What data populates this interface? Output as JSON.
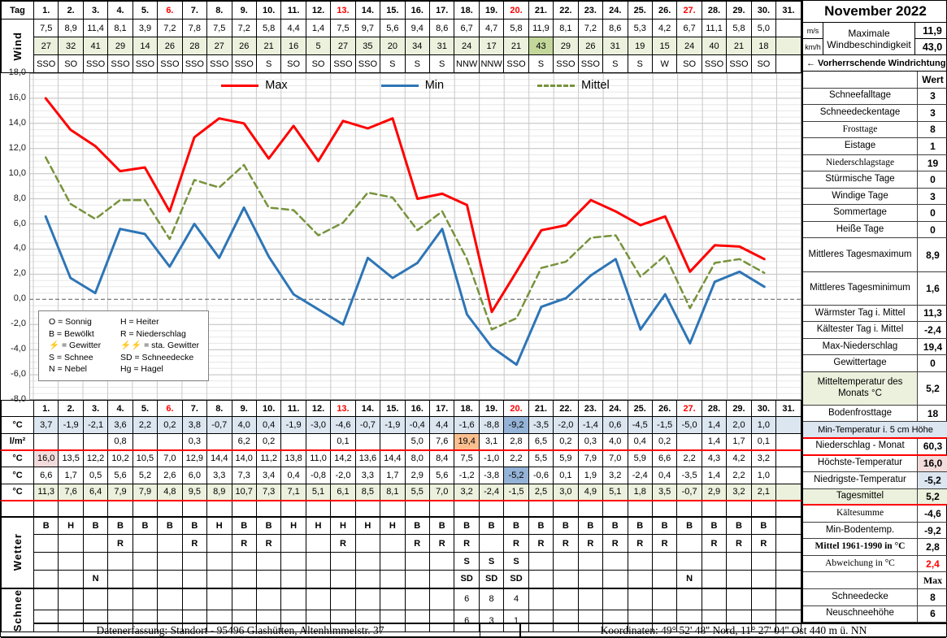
{
  "title": "November 2022",
  "tag_label": "Tag",
  "days": [
    "1.",
    "2.",
    "3.",
    "4.",
    "5.",
    "6.",
    "7.",
    "8.",
    "9.",
    "10.",
    "11.",
    "12.",
    "13.",
    "14.",
    "15.",
    "16.",
    "17.",
    "18.",
    "19.",
    "20.",
    "21.",
    "22.",
    "23.",
    "24.",
    "25.",
    "26.",
    "27.",
    "28.",
    "29.",
    "30.",
    "31."
  ],
  "sunday_days": [
    6,
    13,
    20,
    27
  ],
  "colors": {
    "green": "#ebf1dd",
    "green_dark": "#c4d79b",
    "blue": "#dce6f1",
    "blue_dark": "#95b3d7",
    "pink": "#f2dcdb",
    "orange": "#fabf8f",
    "red": "#ff0000"
  },
  "wind": {
    "row_label": "Wind",
    "unit_ms": "m/s",
    "unit_kmh": "km/h",
    "ms": [
      "7,5",
      "8,9",
      "11,4",
      "8,1",
      "3,9",
      "7,2",
      "7,8",
      "7,5",
      "7,2",
      "5,8",
      "4,4",
      "1,4",
      "7,5",
      "9,7",
      "5,6",
      "9,4",
      "8,6",
      "6,7",
      "4,7",
      "5,8",
      "11,9",
      "8,1",
      "7,2",
      "8,6",
      "5,3",
      "4,2",
      "6,7",
      "11,1",
      "5,8",
      "5,0",
      ""
    ],
    "kmh": [
      "27",
      "32",
      "41",
      "29",
      "14",
      "26",
      "28",
      "27",
      "26",
      "21",
      "16",
      "5",
      "27",
      "35",
      "20",
      "34",
      "31",
      "24",
      "17",
      "21",
      "43",
      "29",
      "26",
      "31",
      "19",
      "15",
      "24",
      "40",
      "21",
      "18",
      ""
    ],
    "dir": [
      "SSO",
      "SO",
      "SSO",
      "SSO",
      "SSO",
      "SSO",
      "SSO",
      "SSO",
      "SSO",
      "S",
      "SO",
      "SO",
      "SSO",
      "SSO",
      "S",
      "S",
      "S",
      "NNW",
      "NNW",
      "SSO",
      "S",
      "SSO",
      "SSO",
      "S",
      "S",
      "W",
      "SO",
      "SSO",
      "SSO",
      "SO",
      ""
    ],
    "kmh_highlight_day": 21,
    "max_label": "Maximale Windbeschindigkeit",
    "max_ms": "11,9",
    "max_kmh": "43,0",
    "prevailing_label": "← Vorherrschende Windrichtung"
  },
  "chart_data": {
    "type": "line",
    "title": "",
    "xlabel": "",
    "ylabel": "",
    "categories_from": "days",
    "ylim": [
      -8,
      18
    ],
    "ytick_step": 2,
    "yminor_step": 0.5,
    "ytick_labels": [
      "18,0",
      "16,0",
      "14,0",
      "12,0",
      "10,0",
      "8,0",
      "6,0",
      "4,0",
      "2,0",
      "0,0",
      "-2,0",
      "-4,0",
      "-6,0",
      "-8,0"
    ],
    "grid": true,
    "zero_line": "dashed",
    "legend_position": "top-center",
    "series": [
      {
        "name": "Max",
        "color": "#ff0000",
        "width": 3,
        "dash": "",
        "values": [
          16,
          13.5,
          12.2,
          10.2,
          10.5,
          7,
          12.9,
          14.4,
          14,
          11.2,
          13.8,
          11,
          14.2,
          13.6,
          14.4,
          8,
          8.4,
          7.5,
          -1,
          2.2,
          5.5,
          5.9,
          7.9,
          7,
          5.9,
          6.6,
          2.2,
          4.3,
          4.2,
          3.2
        ]
      },
      {
        "name": "Min",
        "color": "#2e75b6",
        "width": 3,
        "dash": "",
        "values": [
          6.6,
          1.7,
          0.5,
          5.6,
          5.2,
          2.6,
          6,
          3.3,
          7.3,
          3.4,
          0.4,
          -0.8,
          -2,
          3.3,
          1.7,
          2.9,
          5.6,
          -1.2,
          -3.8,
          -5.2,
          -0.6,
          0.1,
          1.9,
          3.2,
          -2.4,
          0.4,
          -3.5,
          1.4,
          2.2,
          1
        ]
      },
      {
        "name": "Mittel",
        "color": "#77933c",
        "width": 2.5,
        "dash": "8 5",
        "values": [
          11.3,
          7.6,
          6.4,
          7.9,
          7.9,
          4.8,
          9.5,
          8.9,
          10.7,
          7.3,
          7.1,
          5.1,
          6.1,
          8.5,
          8.1,
          5.5,
          7,
          3.2,
          -2.4,
          -1.5,
          2.5,
          3,
          4.9,
          5.1,
          1.8,
          3.5,
          -0.7,
          2.9,
          3.2,
          2.1
        ]
      }
    ]
  },
  "code_legend": {
    "items": [
      {
        "sym": "O",
        "label": "Sonnig"
      },
      {
        "sym": "H",
        "label": "Heiter"
      },
      {
        "sym": "B",
        "label": "Bewölkt"
      },
      {
        "sym": "R",
        "label": "Niederschlag"
      },
      {
        "sym": "⚡",
        "label": "Gewitter",
        "red": true
      },
      {
        "sym": "⚡⚡",
        "label": "sta. Gewitter",
        "red": true
      },
      {
        "sym": "S",
        "label": "Schnee"
      },
      {
        "sym": "SD",
        "label": "Schneedecke"
      },
      {
        "sym": "N",
        "label": "Nebel"
      },
      {
        "sym": "Hg",
        "label": "Hagel"
      }
    ]
  },
  "bottom": {
    "rows": [
      {
        "name": "min-temp-5cm",
        "label": "°C",
        "row_bg": "blue",
        "highlights": {
          "20": "blue_dark"
        },
        "values": [
          "3,7",
          "-1,9",
          "-2,1",
          "3,6",
          "2,2",
          "0,2",
          "3,8",
          "-0,7",
          "4,0",
          "0,4",
          "-1,9",
          "-3,0",
          "-4,6",
          "-0,7",
          "-1,9",
          "-0,4",
          "4,4",
          "-1,6",
          "-8,8",
          "-9,2",
          "-3,5",
          "-2,0",
          "-1,4",
          "0,6",
          "-4,5",
          "-1,5",
          "-5,0",
          "1,4",
          "2,0",
          "1,0",
          ""
        ]
      },
      {
        "name": "niederschlag",
        "label": "l/m²",
        "highlights": {
          "18": "orange"
        },
        "redline": true,
        "values": [
          "",
          "",
          "",
          "0,8",
          "",
          "",
          "0,3",
          "",
          "6,2",
          "0,2",
          "",
          "",
          "0,1",
          "",
          "",
          "5,0",
          "7,6",
          "19,4",
          "3,1",
          "2,8",
          "6,5",
          "0,2",
          "0,3",
          "4,0",
          "0,4",
          "0,2",
          "",
          "1,4",
          "1,7",
          "0,1",
          ""
        ]
      },
      {
        "name": "hoechste-temp",
        "label": "°C",
        "highlights": {
          "1": "pink"
        },
        "values": [
          "16,0",
          "13,5",
          "12,2",
          "10,2",
          "10,5",
          "7,0",
          "12,9",
          "14,4",
          "14,0",
          "11,2",
          "13,8",
          "11,0",
          "14,2",
          "13,6",
          "14,4",
          "8,0",
          "8,4",
          "7,5",
          "-1,0",
          "2,2",
          "5,5",
          "5,9",
          "7,9",
          "7,0",
          "5,9",
          "6,6",
          "2,2",
          "4,3",
          "4,2",
          "3,2",
          ""
        ]
      },
      {
        "name": "niedrigste-temp",
        "label": "°C",
        "highlights": {
          "20": "blue_dark"
        },
        "values": [
          "6,6",
          "1,7",
          "0,5",
          "5,6",
          "5,2",
          "2,6",
          "6,0",
          "3,3",
          "7,3",
          "3,4",
          "0,4",
          "-0,8",
          "-2,0",
          "3,3",
          "1,7",
          "2,9",
          "5,6",
          "-1,2",
          "-3,8",
          "-5,2",
          "-0,6",
          "0,1",
          "1,9",
          "3,2",
          "-2,4",
          "0,4",
          "-3,5",
          "1,4",
          "2,2",
          "1,0",
          ""
        ]
      },
      {
        "name": "tagesmittel",
        "label": "°C",
        "row_bg": "green",
        "redline": true,
        "values": [
          "11,3",
          "7,6",
          "6,4",
          "7,9",
          "7,9",
          "4,8",
          "9,5",
          "8,9",
          "10,7",
          "7,3",
          "7,1",
          "5,1",
          "6,1",
          "8,5",
          "8,1",
          "5,5",
          "7,0",
          "3,2",
          "-2,4",
          "-1,5",
          "2,5",
          "3,0",
          "4,9",
          "5,1",
          "1,8",
          "3,5",
          "-0,7",
          "2,9",
          "3,2",
          "2,1",
          ""
        ]
      },
      {
        "name": "spacer",
        "label": "",
        "values": [
          "",
          "",
          "",
          "",
          "",
          "",
          "",
          "",
          "",
          "",
          "",
          "",
          "",
          "",
          "",
          "",
          "",
          "",
          "",
          "",
          "",
          "",
          "",
          "",
          "",
          "",
          "",
          "",
          "",
          "",
          ""
        ]
      }
    ],
    "wetter": {
      "label": "Wetter",
      "rows": [
        [
          "B",
          "H",
          "B",
          "B",
          "B",
          "B",
          "B",
          "H",
          "B",
          "B",
          "H",
          "H",
          "H",
          "H",
          "H",
          "B",
          "B",
          "B",
          "B",
          "B",
          "B",
          "B",
          "B",
          "B",
          "B",
          "B",
          "B",
          "B",
          "B",
          "B",
          ""
        ],
        [
          "",
          "",
          "",
          "R",
          "",
          "",
          "R",
          "",
          "R",
          "R",
          "",
          "",
          "R",
          "",
          "",
          "R",
          "R",
          "R",
          "",
          "R",
          "R",
          "R",
          "R",
          "R",
          "R",
          "R",
          "",
          "R",
          "R",
          "R",
          ""
        ],
        [
          "",
          "",
          "",
          "",
          "",
          "",
          "",
          "",
          "",
          "",
          "",
          "",
          "",
          "",
          "",
          "",
          "",
          "S",
          "S",
          "S",
          "",
          "",
          "",
          "",
          "",
          "",
          "",
          "",
          "",
          "",
          ""
        ],
        [
          "",
          "",
          "N",
          "",
          "",
          "",
          "",
          "",
          "",
          "",
          "",
          "",
          "",
          "",
          "",
          "",
          "",
          "SD",
          "SD",
          "SD",
          "",
          "",
          "",
          "",
          "",
          "",
          "N",
          "",
          "",
          "",
          ""
        ]
      ]
    },
    "schnee": {
      "label": "Schnee",
      "rows": [
        [
          "",
          "",
          "",
          "",
          "",
          "",
          "",
          "",
          "",
          "",
          "",
          "",
          "",
          "",
          "",
          "",
          "",
          "6",
          "8",
          "4",
          "",
          "",
          "",
          "",
          "",
          "",
          "",
          "",
          "",
          "",
          ""
        ],
        [
          "",
          "",
          "",
          "",
          "",
          "",
          "",
          "",
          "",
          "",
          "",
          "",
          "",
          "",
          "",
          "",
          "",
          "6",
          "3",
          "1",
          "",
          "",
          "",
          "",
          "",
          "",
          "",
          "",
          "",
          "",
          ""
        ]
      ]
    }
  },
  "sidebar": {
    "rows": [
      {
        "label": "",
        "value": "Wert",
        "header": true
      },
      {
        "label": "Schneefalltage",
        "value": "3"
      },
      {
        "label": "Schneedeckentage",
        "value": "3"
      },
      {
        "label": "Frosttage",
        "value": "8",
        "serif": true
      },
      {
        "label": "Eistage",
        "value": "1"
      },
      {
        "label": "Niederschlagstage",
        "value": "19",
        "serif": true
      },
      {
        "label": "Stürmische Tage",
        "value": "0"
      },
      {
        "label": "Windige Tage",
        "value": "3"
      },
      {
        "label": "Sommertage",
        "value": "0"
      },
      {
        "label": "Heiße Tage",
        "value": "0"
      },
      {
        "label": "Mittleres Tagesmaximum",
        "value": "8,9",
        "two": true
      },
      {
        "label": "Mittleres Tagesminimum",
        "value": "1,6",
        "two": true
      },
      {
        "label": "Wärmster Tag i. Mittel",
        "value": "11,3"
      },
      {
        "label": "Kältester Tag i. Mittel",
        "value": "-2,4"
      },
      {
        "label": "Max-Niederschlag",
        "value": "19,4"
      },
      {
        "label": "Gewittertage",
        "value": "0"
      },
      {
        "label": "Mitteltemperatur des Monats °C",
        "value": "5,2",
        "two": true,
        "bg": "green"
      },
      {
        "label": "Bodenfrosttage",
        "value": "18"
      },
      {
        "full": "Min-Temperatur i. 5 cm Höhe",
        "bg": "blue",
        "redline": true
      },
      {
        "label": "Niederschlag - Monat",
        "value": "60,3",
        "redline": true
      },
      {
        "label": "Höchste-Temperatur",
        "value": "16,0",
        "vbg": "pink"
      },
      {
        "label": "Niedrigste-Temperatur",
        "value": "-5,2",
        "vbg": "blue"
      },
      {
        "label": "Tagesmittel",
        "value": "5,2",
        "bg": "green",
        "vbg": "green",
        "redline": true
      },
      {
        "label": "Kältesumme",
        "value": "-4,6",
        "serif": true
      },
      {
        "label": "Min-Bodentemp.",
        "value": "-9,2"
      },
      {
        "label": "Mittel 1961-1990 in °C",
        "value": "2,8",
        "bold": true,
        "serif": true
      },
      {
        "label": "Abweichung in °C",
        "value": "2,4",
        "vred": true,
        "serif": true
      },
      {
        "label": "",
        "value": "Max",
        "header": true,
        "serif": true
      },
      {
        "label": "Schneedecke",
        "value": "8"
      },
      {
        "label": "Neuschneehöhe",
        "value": "6"
      }
    ]
  },
  "footer": {
    "left": "Datenerfassung:  Standort -  95496  Glashütten, Altenhimmelstr. 37",
    "right": "Koordinaten:  49° 52' 48'' Nord,   11° 27' 04'' Ost   440 m ü. NN"
  }
}
